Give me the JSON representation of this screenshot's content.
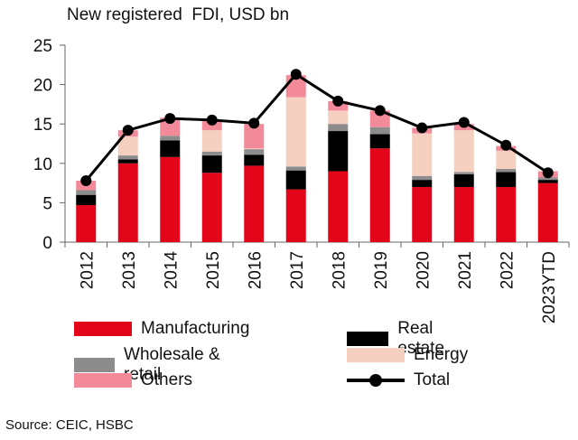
{
  "chart_data": {
    "type": "bar",
    "stacked": true,
    "title": "New registered  FDI, USD bn",
    "source": "Source: CEIC, HSBC",
    "categories": [
      "2012",
      "2013",
      "2014",
      "2015",
      "2016",
      "2017",
      "2018",
      "2019",
      "2020",
      "2021",
      "2022",
      "2023YTD"
    ],
    "ylim": [
      0,
      25
    ],
    "yticks": [
      0,
      5,
      10,
      15,
      20,
      25
    ],
    "series": [
      {
        "name": "Manufacturing",
        "color": "#e3061b",
        "values": [
          4.7,
          10.0,
          10.8,
          8.8,
          9.7,
          6.7,
          9.0,
          11.9,
          7.0,
          7.0,
          7.0,
          7.5
        ]
      },
      {
        "name": "Real estate",
        "color": "#000000",
        "values": [
          1.3,
          0.5,
          2.1,
          2.2,
          1.4,
          2.4,
          5.1,
          1.8,
          0.9,
          1.6,
          1.9,
          0.4
        ]
      },
      {
        "name": "Wholesale & retail",
        "color": "#8c8c8c",
        "values": [
          0.6,
          0.5,
          0.6,
          0.5,
          0.7,
          0.5,
          0.9,
          0.9,
          0.5,
          0.3,
          0.4,
          0.3
        ]
      },
      {
        "name": "Energy",
        "color": "#f5cfbf",
        "values": [
          0,
          2.4,
          0,
          2.7,
          0.1,
          8.8,
          1.7,
          0,
          5.4,
          5.3,
          2.3,
          0
        ]
      },
      {
        "name": "Others",
        "color": "#f28a9a",
        "values": [
          1.2,
          0.8,
          2.3,
          1.3,
          3.1,
          2.8,
          1.2,
          2.1,
          0.7,
          0.8,
          0.6,
          0.8
        ]
      }
    ],
    "line": {
      "name": "Total",
      "color": "#000000",
      "values": [
        7.8,
        14.2,
        15.7,
        15.5,
        15.1,
        21.3,
        17.9,
        16.7,
        14.5,
        15.2,
        12.3,
        8.8
      ]
    },
    "legend": [
      "Manufacturing",
      "Real estate",
      "Wholesale & retail",
      "Energy",
      "Others",
      "Total"
    ]
  }
}
